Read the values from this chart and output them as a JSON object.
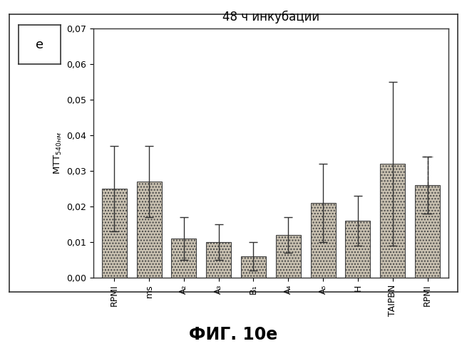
{
  "categories": [
    "RPMI",
    "ms",
    "A₂",
    "A₃",
    "B₁",
    "A₄",
    "A₅",
    "H",
    "TAIPBN",
    "RPMI"
  ],
  "values": [
    0.025,
    0.027,
    0.011,
    0.01,
    0.006,
    0.012,
    0.021,
    0.016,
    0.032,
    0.026
  ],
  "errors": [
    0.012,
    0.01,
    0.006,
    0.005,
    0.004,
    0.005,
    0.011,
    0.007,
    0.023,
    0.008
  ],
  "bar_color": "#c8c0b0",
  "bar_edge_color": "#444444",
  "title": "48 ч инкубации",
  "ylabel": "MTT$_{540нм}$",
  "ylim": [
    0.0,
    0.07
  ],
  "yticks": [
    0.0,
    0.01,
    0.02,
    0.03,
    0.04,
    0.05,
    0.06,
    0.07
  ],
  "fig_label": "e",
  "fig_caption": "ФИГ. 10e",
  "background_color": "#ffffff"
}
